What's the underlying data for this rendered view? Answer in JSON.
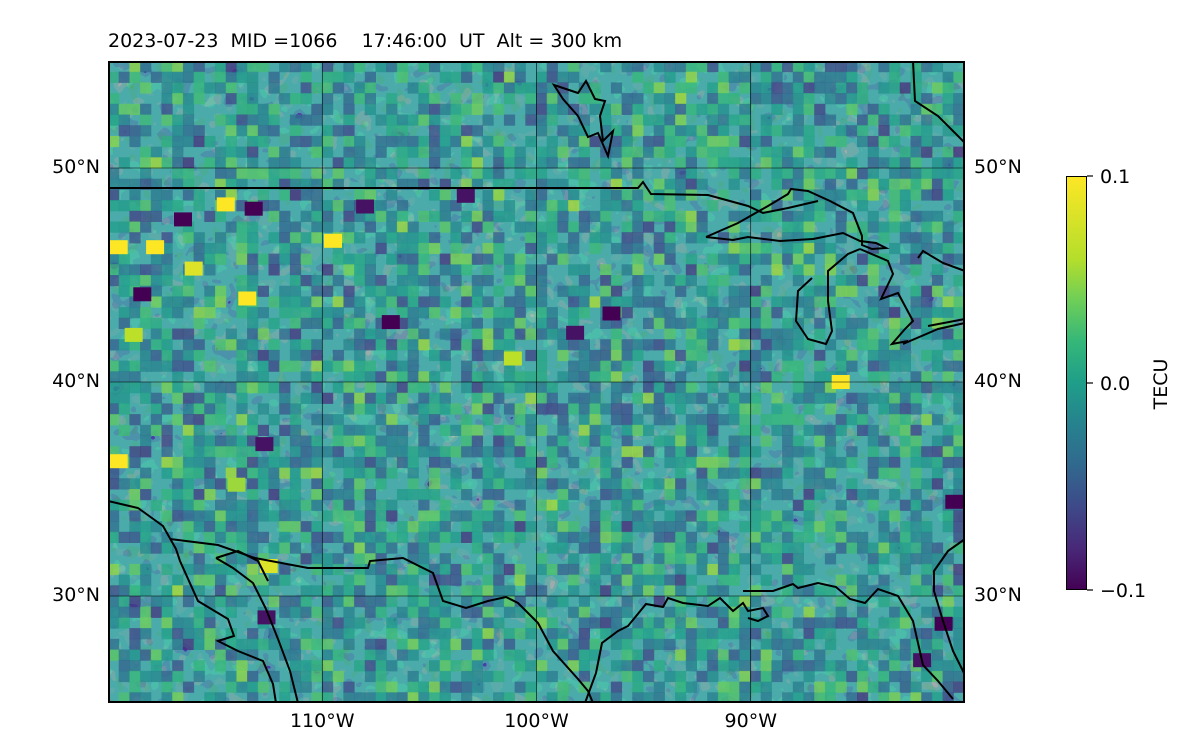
{
  "title": "2023-07-23  MID =1066    17:46:00  UT  Alt = 300 km",
  "map": {
    "lon_range": [
      -120,
      -80
    ],
    "lat_range": [
      25,
      55
    ],
    "lon_ticks": [
      -110,
      -100,
      -90
    ],
    "lat_ticks": [
      30,
      40,
      50
    ],
    "lon_tick_labels": [
      "110°W",
      "100°W",
      "90°W"
    ],
    "lat_tick_labels": [
      "30°N",
      "40°N",
      "50°N"
    ],
    "grid": true,
    "background_color": "#2e8c8a"
  },
  "colorbar": {
    "label": "TECU",
    "min": -0.1,
    "max": 0.1,
    "tick_labels": [
      "0.1",
      "0.0",
      "−0.1"
    ],
    "colormap": "viridis",
    "colors": [
      "#440154",
      "#3b528b",
      "#21918c",
      "#5ec962",
      "#fde725"
    ]
  },
  "chart_data": {
    "type": "heatmap",
    "title": "2023-07-23  MID =1066    17:46:00  UT  Alt = 300 km",
    "value_label": "TECU",
    "value_range": [
      -0.1,
      0.1
    ],
    "x_axis": "longitude",
    "y_axis": "latitude",
    "xlim": [
      -120,
      -80
    ],
    "ylim": [
      25,
      55
    ],
    "hotspots": [
      {
        "lon": -119.5,
        "lat": 46.3,
        "value": 0.1
      },
      {
        "lon": -117.8,
        "lat": 46.3,
        "value": 0.1
      },
      {
        "lon": -116,
        "lat": 45.3,
        "value": 0.09
      },
      {
        "lon": -114.5,
        "lat": 48.3,
        "value": 0.1
      },
      {
        "lon": -109.5,
        "lat": 46.6,
        "value": 0.1
      },
      {
        "lon": -113.5,
        "lat": 43.9,
        "value": 0.1
      },
      {
        "lon": -118.8,
        "lat": 42.2,
        "value": 0.08
      },
      {
        "lon": -119.5,
        "lat": 36.3,
        "value": 0.1
      },
      {
        "lon": -114,
        "lat": 35.2,
        "value": 0.07
      },
      {
        "lon": -112.5,
        "lat": 31.4,
        "value": 0.09
      },
      {
        "lon": -101.1,
        "lat": 41.1,
        "value": 0.08
      },
      {
        "lon": -85.8,
        "lat": 40.0,
        "value": 0.1
      },
      {
        "lon": -118.4,
        "lat": 44.1,
        "value": -0.1
      },
      {
        "lon": -116.5,
        "lat": 47.6,
        "value": -0.1
      },
      {
        "lon": -113.2,
        "lat": 48.1,
        "value": -0.1
      },
      {
        "lon": -108,
        "lat": 48.2,
        "value": -0.09
      },
      {
        "lon": -103.3,
        "lat": 48.7,
        "value": -0.09
      },
      {
        "lon": -106.8,
        "lat": 42.8,
        "value": -0.1
      },
      {
        "lon": -112.7,
        "lat": 37.1,
        "value": -0.09
      },
      {
        "lon": -112.6,
        "lat": 29.0,
        "value": -0.09
      },
      {
        "lon": -96.5,
        "lat": 43.2,
        "value": -0.1
      },
      {
        "lon": -98.2,
        "lat": 42.3,
        "value": -0.09
      },
      {
        "lon": -80.5,
        "lat": 34.4,
        "value": -0.1
      },
      {
        "lon": -81,
        "lat": 28.7,
        "value": -0.1
      },
      {
        "lon": -82,
        "lat": 27.0,
        "value": -0.09
      }
    ]
  }
}
